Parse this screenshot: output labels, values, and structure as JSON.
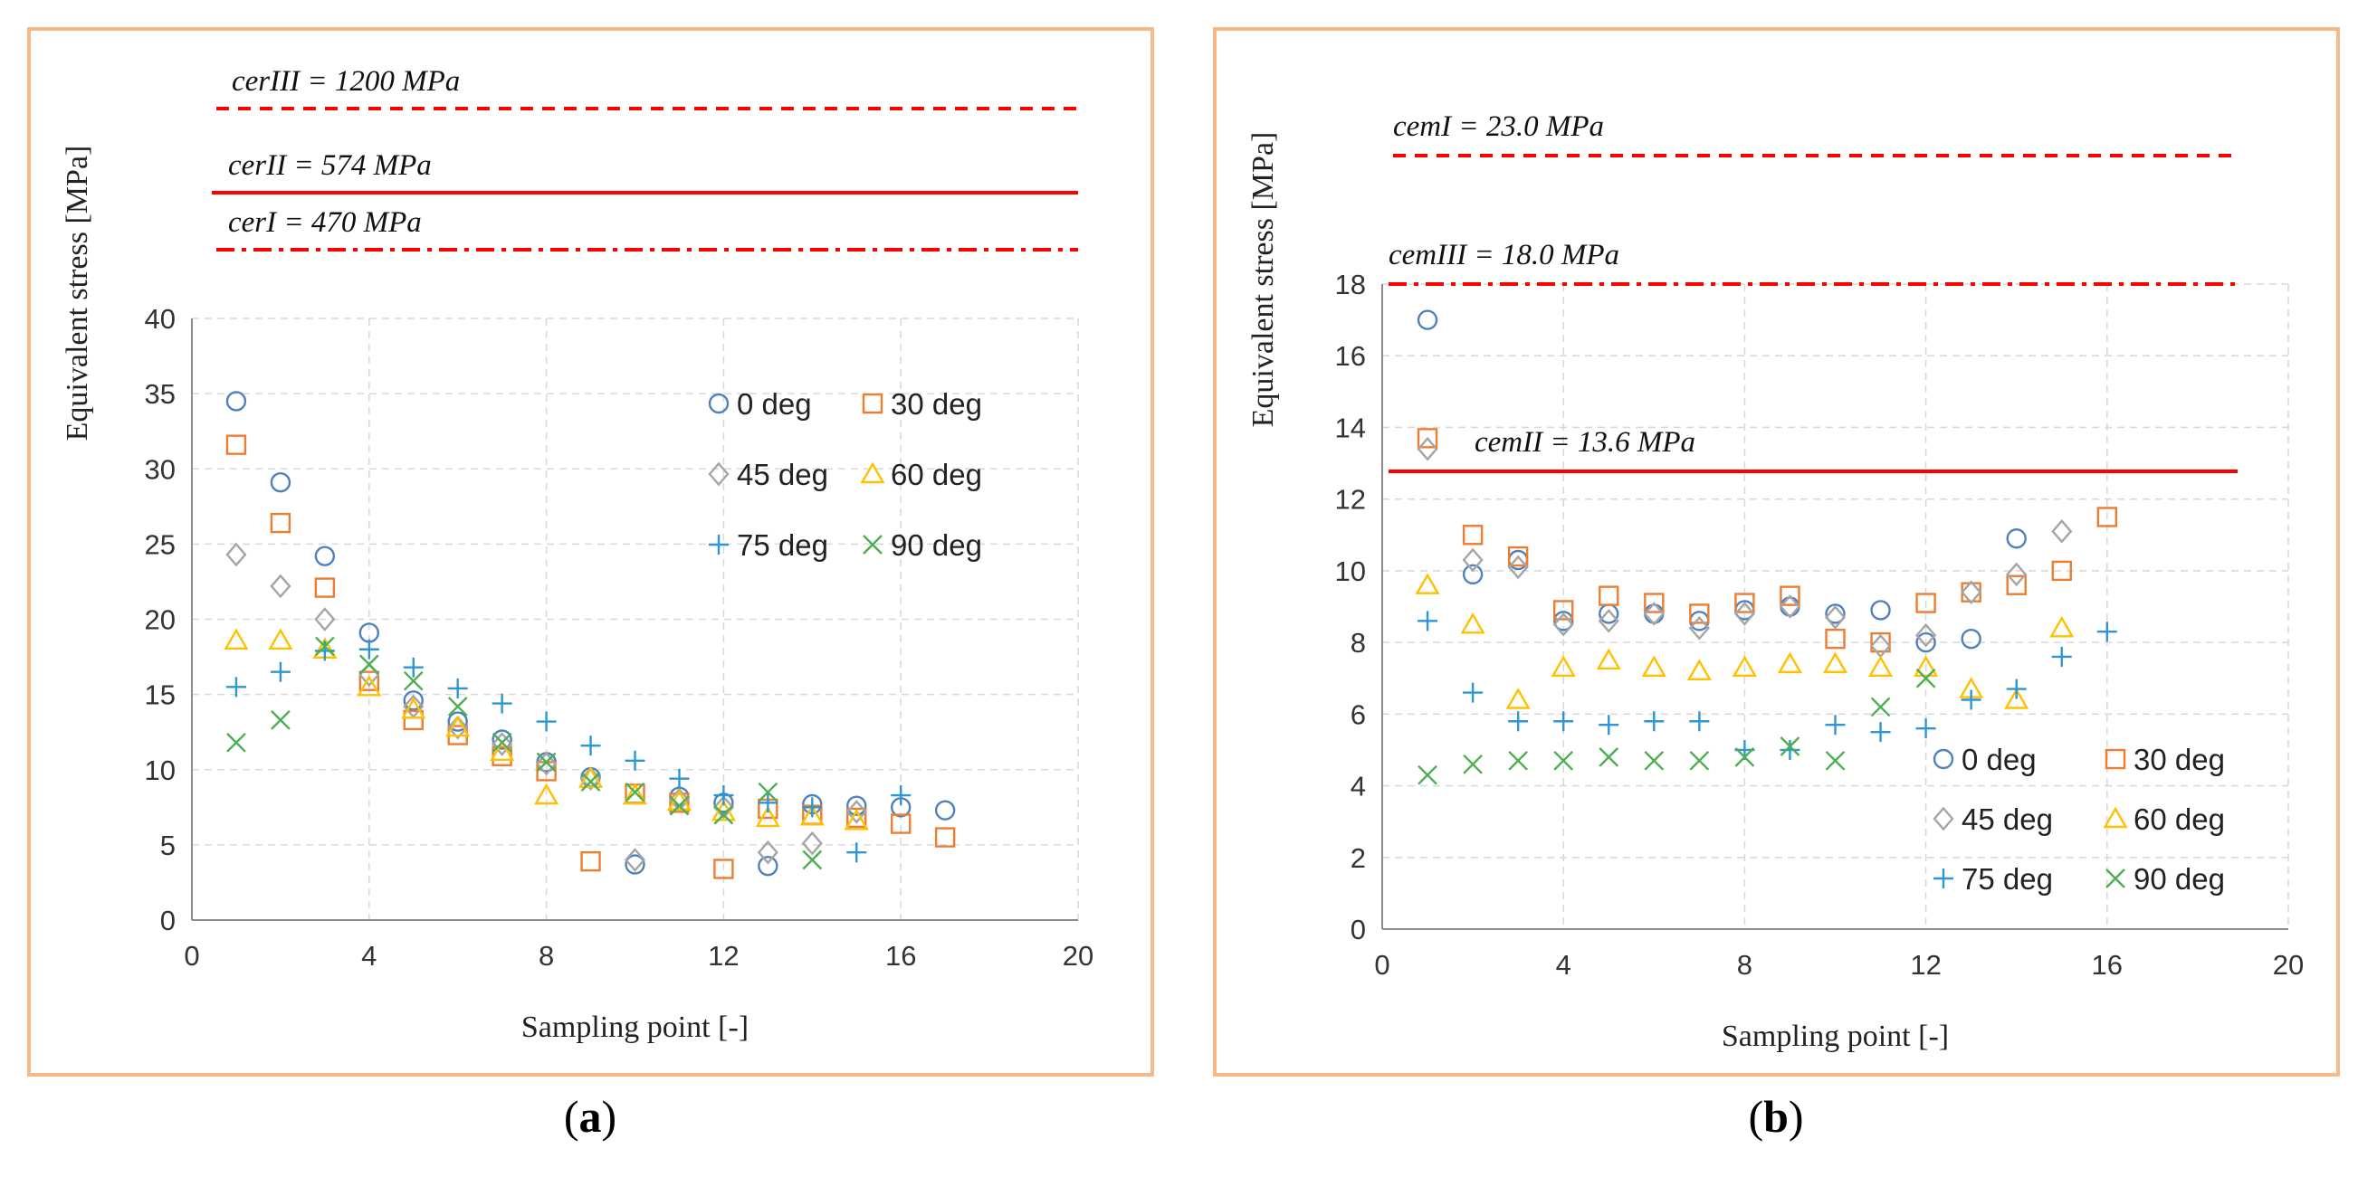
{
  "captions": {
    "a": "a",
    "b": "b"
  },
  "chart_data": [
    {
      "type": "scatter",
      "panel": "a",
      "xlabel": "Sampling point [-]",
      "ylabel": "Equivalent stress [MPa]",
      "xlim": [
        0,
        20
      ],
      "ylim": [
        0,
        40
      ],
      "xticks": [
        0,
        4,
        8,
        12,
        16,
        20
      ],
      "yticks": [
        0,
        5,
        10,
        15,
        20,
        25,
        30,
        35,
        40
      ],
      "grid": true,
      "legend_position": "right",
      "legend_columns": 2,
      "reference_lines": [
        {
          "label": "cerIII = 1200 MPa",
          "style": "dashed",
          "color": "#ff0000"
        },
        {
          "label": "cerII = 574 MPa",
          "style": "solid",
          "color": "#ff0000"
        },
        {
          "label": "cerI = 470 MPa",
          "style": "dash-dot",
          "color": "#ff0000"
        }
      ],
      "series": [
        {
          "name": "0  deg",
          "marker": "circle",
          "color": "#4f81bd",
          "points": [
            [
              1,
              34.5
            ],
            [
              2,
              29.1
            ],
            [
              3,
              24.2
            ],
            [
              4,
              19.1
            ],
            [
              5,
              14.6
            ],
            [
              6,
              13.2
            ],
            [
              7,
              12.0
            ],
            [
              8,
              10.5
            ],
            [
              9,
              9.5
            ],
            [
              10,
              3.7
            ],
            [
              11,
              8.2
            ],
            [
              12,
              7.8
            ],
            [
              13,
              3.6
            ],
            [
              14,
              7.7
            ],
            [
              15,
              7.6
            ],
            [
              16,
              7.5
            ],
            [
              17,
              7.3
            ]
          ]
        },
        {
          "name": "30 deg",
          "marker": "square",
          "color": "#ed7d31",
          "points": [
            [
              1,
              31.6
            ],
            [
              2,
              26.4
            ],
            [
              3,
              22.1
            ],
            [
              4,
              15.9
            ],
            [
              5,
              13.3
            ],
            [
              6,
              12.3
            ],
            [
              7,
              10.9
            ],
            [
              8,
              9.9
            ],
            [
              9,
              3.9
            ],
            [
              10,
              8.4
            ],
            [
              11,
              7.8
            ],
            [
              12,
              3.4
            ],
            [
              13,
              7.4
            ],
            [
              14,
              7.0
            ],
            [
              15,
              6.8
            ],
            [
              16,
              6.4
            ],
            [
              17,
              5.5
            ]
          ]
        },
        {
          "name": "45 deg",
          "marker": "diamond",
          "color": "#a5a5a5",
          "points": [
            [
              1,
              24.3
            ],
            [
              2,
              22.2
            ],
            [
              3,
              20.0
            ],
            [
              4,
              16.3
            ],
            [
              5,
              14.2
            ],
            [
              6,
              12.8
            ],
            [
              7,
              11.7
            ],
            [
              8,
              10.4
            ],
            [
              9,
              9.4
            ],
            [
              10,
              4.0
            ],
            [
              11,
              8.0
            ],
            [
              12,
              7.5
            ],
            [
              13,
              4.5
            ],
            [
              14,
              5.1
            ],
            [
              15,
              7.2
            ]
          ]
        },
        {
          "name": "60 deg",
          "marker": "triangle",
          "color": "#ffc000",
          "points": [
            [
              1,
              18.6
            ],
            [
              2,
              18.6
            ],
            [
              3,
              18.0
            ],
            [
              4,
              15.5
            ],
            [
              5,
              14.0
            ],
            [
              6,
              12.8
            ],
            [
              7,
              11.2
            ],
            [
              8,
              8.3
            ],
            [
              9,
              9.4
            ],
            [
              10,
              8.3
            ],
            [
              11,
              7.9
            ],
            [
              12,
              7.2
            ],
            [
              13,
              6.8
            ],
            [
              14,
              6.9
            ],
            [
              15,
              6.6
            ]
          ]
        },
        {
          "name": "75 deg",
          "marker": "plus",
          "color": "#2e96d6",
          "points": [
            [
              1,
              15.5
            ],
            [
              2,
              16.5
            ],
            [
              3,
              17.9
            ],
            [
              4,
              18.0
            ],
            [
              5,
              16.8
            ],
            [
              6,
              15.4
            ],
            [
              7,
              14.4
            ],
            [
              8,
              13.2
            ],
            [
              9,
              11.6
            ],
            [
              10,
              10.6
            ],
            [
              11,
              9.4
            ],
            [
              12,
              8.3
            ],
            [
              13,
              7.8
            ],
            [
              14,
              7.5
            ],
            [
              15,
              4.5
            ],
            [
              16,
              8.3
            ]
          ]
        },
        {
          "name": "90 deg",
          "marker": "x",
          "color": "#4caf50",
          "points": [
            [
              1,
              11.8
            ],
            [
              2,
              13.3
            ],
            [
              3,
              18.2
            ],
            [
              4,
              17.0
            ],
            [
              5,
              15.9
            ],
            [
              6,
              14.2
            ],
            [
              7,
              11.8
            ],
            [
              8,
              10.5
            ],
            [
              9,
              9.2
            ],
            [
              10,
              8.5
            ],
            [
              11,
              7.6
            ],
            [
              12,
              7.0
            ],
            [
              13,
              8.5
            ],
            [
              14,
              4.0
            ]
          ]
        }
      ]
    },
    {
      "type": "scatter",
      "panel": "b",
      "xlabel": "Sampling point [-]",
      "ylabel": "Equivalent stress [MPa]",
      "xlim": [
        0,
        20
      ],
      "ylim": [
        0,
        18
      ],
      "xticks": [
        0,
        4,
        8,
        12,
        16,
        20
      ],
      "yticks": [
        0,
        2,
        4,
        6,
        8,
        10,
        12,
        14,
        16,
        18
      ],
      "grid": true,
      "legend_position": "bottom-right",
      "legend_columns": 2,
      "reference_lines": [
        {
          "label": "cemI = 23.0 MPa",
          "style": "dashed",
          "color": "#ff0000"
        },
        {
          "label": "cemIII = 18.0 MPa",
          "style": "dash-dot",
          "color": "#ff0000"
        },
        {
          "label": "cemII  = 13.6 MPa",
          "style": "solid",
          "color": "#ff0000"
        }
      ],
      "series": [
        {
          "name": "0 deg",
          "marker": "circle",
          "color": "#4f81bd",
          "points": [
            [
              1,
              17.0
            ],
            [
              2,
              9.9
            ],
            [
              3,
              10.3
            ],
            [
              4,
              8.6
            ],
            [
              5,
              8.8
            ],
            [
              6,
              8.8
            ],
            [
              7,
              8.6
            ],
            [
              8,
              8.9
            ],
            [
              9,
              9.0
            ],
            [
              10,
              8.8
            ],
            [
              11,
              8.9
            ],
            [
              12,
              8.0
            ],
            [
              13,
              8.1
            ],
            [
              14,
              10.9
            ]
          ]
        },
        {
          "name": "30 deg",
          "marker": "square",
          "color": "#ed7d31",
          "points": [
            [
              1,
              13.7
            ],
            [
              2,
              11.0
            ],
            [
              3,
              10.4
            ],
            [
              4,
              8.9
            ],
            [
              5,
              9.3
            ],
            [
              6,
              9.1
            ],
            [
              7,
              8.8
            ],
            [
              8,
              9.1
            ],
            [
              9,
              9.3
            ],
            [
              10,
              8.1
            ],
            [
              11,
              8.0
            ],
            [
              12,
              9.1
            ],
            [
              13,
              9.4
            ],
            [
              14,
              9.6
            ],
            [
              15,
              10.0
            ],
            [
              16,
              11.5
            ]
          ]
        },
        {
          "name": "45 deg",
          "marker": "diamond",
          "color": "#a5a5a5",
          "points": [
            [
              1,
              13.4
            ],
            [
              2,
              10.3
            ],
            [
              3,
              10.1
            ],
            [
              4,
              8.5
            ],
            [
              5,
              8.6
            ],
            [
              6,
              8.8
            ],
            [
              7,
              8.4
            ],
            [
              8,
              8.8
            ],
            [
              9,
              9.0
            ],
            [
              10,
              8.7
            ],
            [
              11,
              7.9
            ],
            [
              12,
              8.2
            ],
            [
              13,
              9.4
            ],
            [
              14,
              9.9
            ],
            [
              15,
              11.1
            ]
          ]
        },
        {
          "name": "60 deg",
          "marker": "triangle",
          "color": "#ffc000",
          "points": [
            [
              1,
              9.6
            ],
            [
              2,
              8.5
            ],
            [
              3,
              6.4
            ],
            [
              4,
              7.3
            ],
            [
              5,
              7.5
            ],
            [
              6,
              7.3
            ],
            [
              7,
              7.2
            ],
            [
              8,
              7.3
            ],
            [
              9,
              7.4
            ],
            [
              10,
              7.4
            ],
            [
              11,
              7.3
            ],
            [
              12,
              7.3
            ],
            [
              13,
              6.7
            ],
            [
              14,
              6.4
            ],
            [
              15,
              8.4
            ]
          ]
        },
        {
          "name": "75 deg",
          "marker": "plus",
          "color": "#2e96d6",
          "points": [
            [
              1,
              8.6
            ],
            [
              2,
              6.6
            ],
            [
              3,
              5.8
            ],
            [
              4,
              5.8
            ],
            [
              5,
              5.7
            ],
            [
              6,
              5.8
            ],
            [
              7,
              5.8
            ],
            [
              8,
              5.0
            ],
            [
              9,
              5.0
            ],
            [
              10,
              5.7
            ],
            [
              11,
              5.5
            ],
            [
              12,
              5.6
            ],
            [
              13,
              6.4
            ],
            [
              14,
              6.7
            ],
            [
              15,
              7.6
            ],
            [
              16,
              8.3
            ]
          ]
        },
        {
          "name": "90 deg",
          "marker": "x",
          "color": "#4caf50",
          "points": [
            [
              1,
              4.3
            ],
            [
              2,
              4.6
            ],
            [
              3,
              4.7
            ],
            [
              4,
              4.7
            ],
            [
              5,
              4.8
            ],
            [
              6,
              4.7
            ],
            [
              7,
              4.7
            ],
            [
              8,
              4.8
            ],
            [
              9,
              5.1
            ],
            [
              10,
              4.7
            ],
            [
              11,
              6.2
            ],
            [
              12,
              7.0
            ]
          ]
        }
      ]
    }
  ]
}
